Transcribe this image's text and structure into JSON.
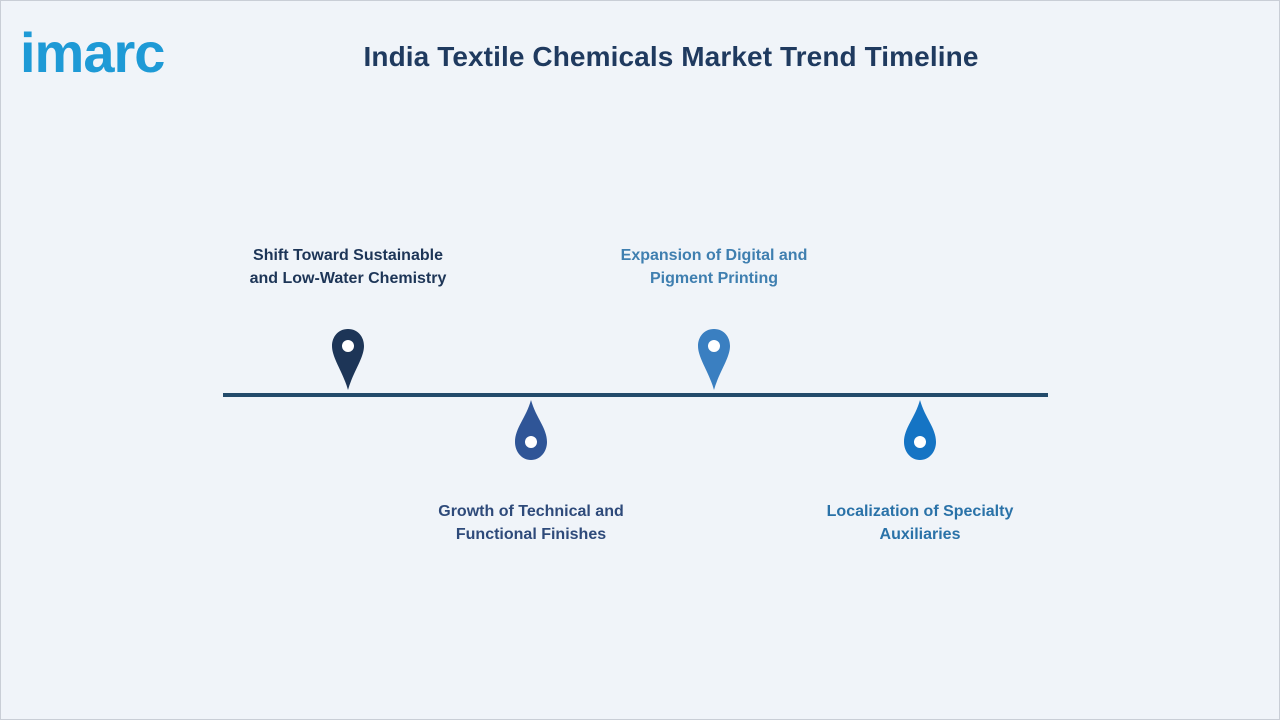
{
  "header": {
    "logo_text": "imarc",
    "title": "India Textile Chemicals Market Trend Timeline"
  },
  "colors": {
    "background": "#f0f4f9",
    "title": "#1f3a5f",
    "line": "#234b6b",
    "logo": "#1e9ad6"
  },
  "timeline": {
    "items": [
      {
        "label": "Shift Toward Sustainable and Low-Water Chemistry",
        "line1": "Shift Toward Sustainable",
        "line2": "and Low-Water Chemistry",
        "position": "above",
        "color": "#1d3557",
        "label_color": "#1d3557",
        "icon": "map-pin-icon"
      },
      {
        "label": "Growth of Technical and Functional Finishes",
        "line1": "Growth of Technical and",
        "line2": "Functional Finishes",
        "position": "below",
        "color": "#2f5597",
        "label_color": "#2e4a7a",
        "icon": "drop-icon"
      },
      {
        "label": "Expansion of Digital and Pigment Printing",
        "line1": "Expansion of Digital and",
        "line2": "Pigment Printing",
        "position": "above",
        "color": "#3a7fc1",
        "label_color": "#3f7fb0",
        "icon": "map-pin-icon"
      },
      {
        "label": "Localization of Specialty Auxiliaries",
        "line1": "Localization of Specialty",
        "line2": "Auxiliaries",
        "position": "below",
        "color": "#1574c4",
        "label_color": "#2a72a8",
        "icon": "drop-icon"
      }
    ]
  }
}
